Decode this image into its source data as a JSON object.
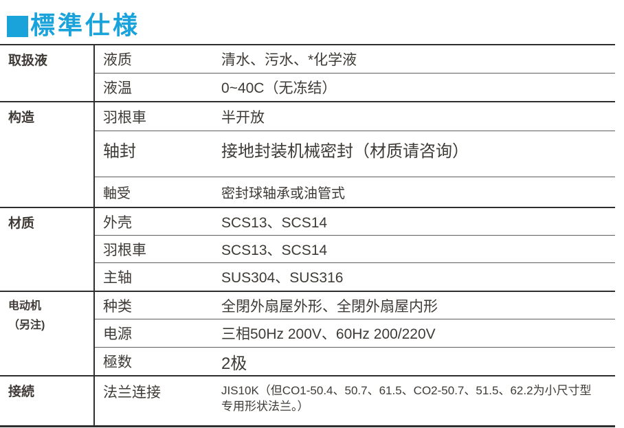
{
  "header": {
    "title": "標準仕様",
    "accent_color": "#1aa3da"
  },
  "table": {
    "groups": [
      {
        "category": "取扱液",
        "rows": [
          {
            "label": "液质",
            "value": "清水、污水、*化学液"
          },
          {
            "label": "液温",
            "value": "0~40C（无冻结）"
          }
        ]
      },
      {
        "category": "构造",
        "rows": [
          {
            "label": "羽根車",
            "value": "半开放"
          },
          {
            "label": "轴封",
            "value": "接地封装机械密封（材质请咨询）"
          },
          {
            "label": "軸受",
            "value": "密封球轴承或油管式"
          }
        ]
      },
      {
        "category": "材质",
        "rows": [
          {
            "label": "外壳",
            "value": "SCS13、SCS14"
          },
          {
            "label": "羽根車",
            "value": "SCS13、SCS14"
          },
          {
            "label": "主轴",
            "value": "SUS304、SUS316"
          }
        ]
      },
      {
        "category": "电动机（另注)",
        "rows": [
          {
            "label": "种类",
            "value": "全閉外扇屋外形、全閉外扇屋内形"
          },
          {
            "label": "电源",
            "value": "三相50Hz 200V、60Hz 200/220V"
          },
          {
            "label": "極数",
            "value": "2极"
          }
        ]
      },
      {
        "category": "接続",
        "rows": [
          {
            "label": "法兰连接",
            "value": "JIS10K（但CO1-50.4、50.7、61.5、CO2-50.7、51.5、62.2为小尺寸型专用形状法兰。）"
          }
        ]
      }
    ]
  }
}
